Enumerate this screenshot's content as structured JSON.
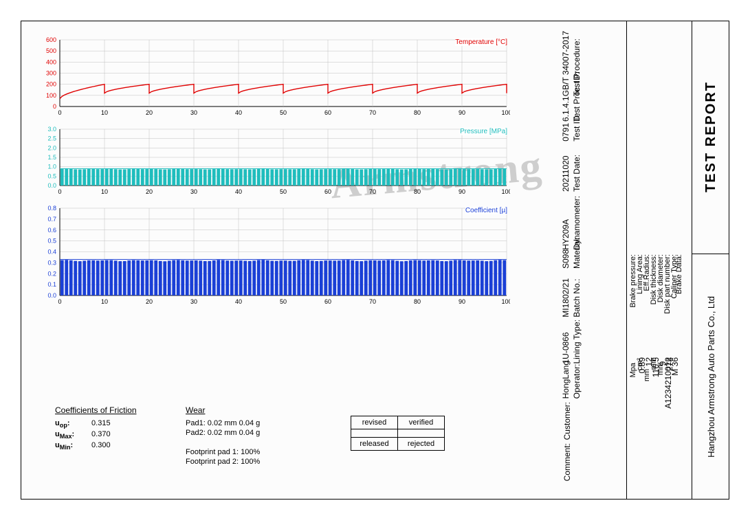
{
  "report_title": "TEST REPORT",
  "company": "Hangzhou Armstrong Auto Parts Co., Ltd",
  "watermark": "Armstrong",
  "meta": [
    {
      "label": "Test Procedure:",
      "value": "GB/T 34007-2017"
    },
    {
      "label": "Test Proc. ID:",
      "value": "6.1.4.1"
    },
    {
      "label": "Test ID:",
      "value": "0791"
    },
    {
      "label": "Test Date:",
      "value": "20211020"
    },
    {
      "label": "Dynamometer:",
      "value": "HY209A"
    },
    {
      "label": "Material:",
      "value": "S098"
    },
    {
      "label": "Batch No.:",
      "value": "MI1802/21"
    },
    {
      "label": "Lining Type:",
      "value": "1U-0866"
    },
    {
      "label": "Operator:",
      "value": "HongLang"
    },
    {
      "label": "Customer:",
      "value": ""
    },
    {
      "label": "Comment:",
      "value": ""
    }
  ],
  "brake_header": "Brake Data:",
  "brake": [
    {
      "label": "Caliper Type:",
      "val": "M 36",
      "unit": ""
    },
    {
      "label": "Disk part number:",
      "val": "A1234210012",
      "unit": ""
    },
    {
      "label": "Disk diameter:",
      "val": "278",
      "unit": "mm"
    },
    {
      "label": "Disk thickness:",
      "val": "9",
      "unit": "mm"
    },
    {
      "label": "Eff.Radius:",
      "val": "116.5",
      "unit": "mm"
    },
    {
      "label": "Lining Area:",
      "val": "12",
      "unit": "cm²"
    },
    {
      "label": "Brake pressure:",
      "val": "0.89",
      "unit": "Mpa"
    }
  ],
  "chart_temp": {
    "legend": "Temperature [°C]",
    "xmin": 0,
    "xmax": 100,
    "xstep": 10,
    "ymin": 0,
    "ymax": 600,
    "ystep": 100,
    "color": "#e00000",
    "grid": "#c0c0c0",
    "axis": "#000",
    "height": 120,
    "series_period": 10,
    "series_ymin": 70,
    "series_ymax": 200,
    "n_cycles": 10,
    "first_cycle_start": 70
  },
  "chart_press": {
    "legend": "Pressure [MPa]",
    "xmin": 0,
    "xmax": 100,
    "xstep": 10,
    "ymin": 0.0,
    "ymax": 3.0,
    "ystep": 0.5,
    "color": "#1fbdbd",
    "grid": "#c0c0c0",
    "axis": "#000",
    "height": 105,
    "baseline": 0.0,
    "peak": 0.9,
    "n_bars": 100
  },
  "chart_coef": {
    "legend": "Coefficient [µ]",
    "xmin": 0,
    "xmax": 100,
    "xstep": 10,
    "ymin": 0.0,
    "ymax": 0.8,
    "ystep": 0.1,
    "color": "#1a3fd6",
    "grid": "#c0c0c0",
    "axis": "#000",
    "height": 150,
    "baseline": 0.0,
    "peak": 0.33,
    "n_bars": 100
  },
  "cof": {
    "title": "Coefficients of Friction",
    "rows": [
      {
        "label": "u_op:",
        "val": "0.315"
      },
      {
        "label": "u_Max:",
        "val": "0.370"
      },
      {
        "label": "u_Min:",
        "val": "0.300"
      }
    ]
  },
  "wear": {
    "title": "Wear",
    "rows": [
      "Pad1:  0.02  mm  0.04  g",
      "Pad2:  0.02  mm  0.04  g",
      "",
      "Footprint pad 1:    100%",
      "Footprint pad 2:    100%"
    ]
  },
  "signoff": {
    "r1c1": "revised",
    "r1c2": "verified",
    "r2c1": "released",
    "r2c2": "rejected"
  }
}
